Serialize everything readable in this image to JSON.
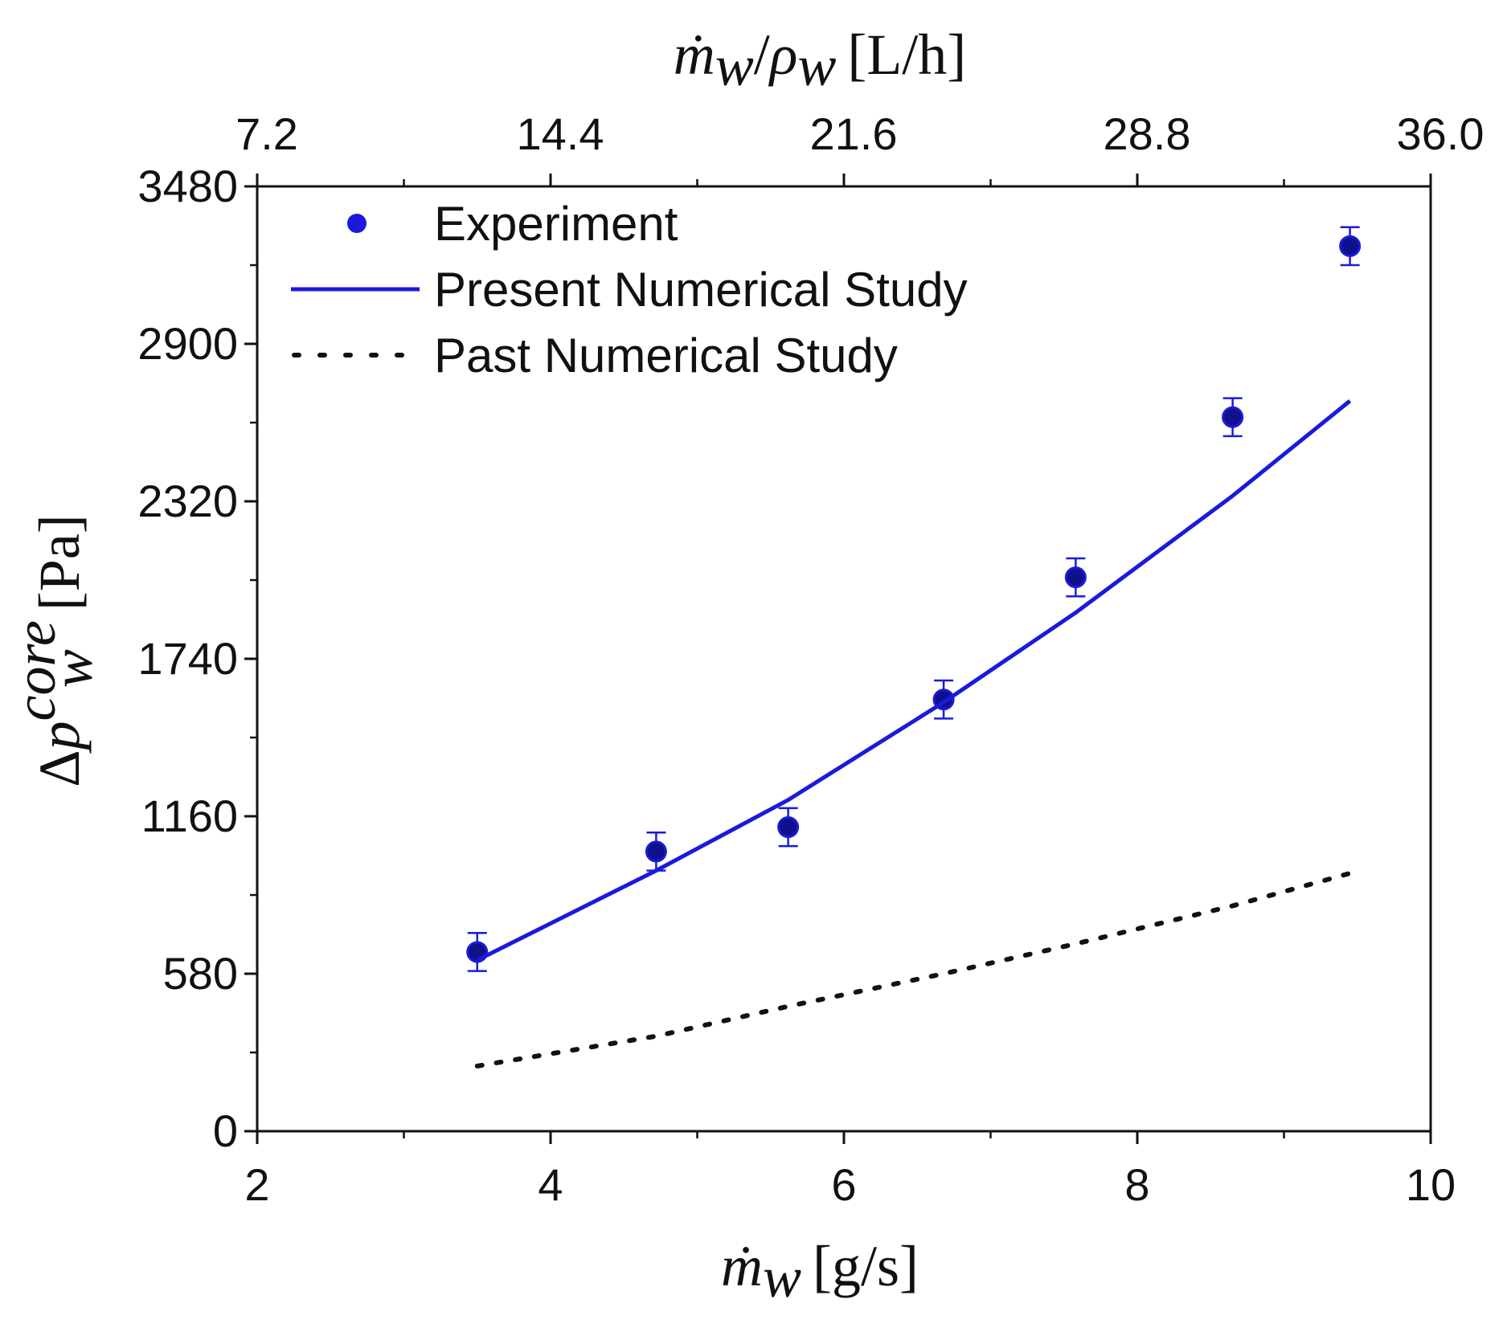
{
  "chart_data": {
    "type": "scatter",
    "x_axis": {
      "label_symbol": "ṁ",
      "label_subscript": "w",
      "label_unit": "[g/s]",
      "range": [
        2,
        10
      ],
      "major_ticks": [
        2,
        4,
        6,
        8,
        10
      ],
      "tick_labels": [
        "2",
        "4",
        "6",
        "8",
        "10"
      ],
      "minor_ticks": [
        3,
        5,
        7,
        9
      ]
    },
    "x_top_axis": {
      "label_symbol": "ṁ",
      "label_subscript": "w",
      "label_divider": "/",
      "label_rho": "ρ",
      "label_rho_subscript": "w",
      "label_unit": "[L/h]",
      "tick_labels": [
        "7.2",
        "14.4",
        "21.6",
        "28.8",
        "36.0"
      ],
      "tick_positions_bottom_units": [
        2,
        4,
        6,
        8,
        10
      ]
    },
    "y_axis": {
      "label_delta": "Δ",
      "label_symbol": "p",
      "label_subscript": "w",
      "label_superscript": "core",
      "label_unit": "[Pa]",
      "range": [
        0,
        3480
      ],
      "major_ticks": [
        0,
        580,
        1160,
        1740,
        2320,
        2900,
        3480
      ],
      "tick_labels": [
        "0",
        "580",
        "1160",
        "1740",
        "2320",
        "2900",
        "3480"
      ],
      "minor_ticks": [
        290,
        870,
        1450,
        2030,
        2610,
        3190
      ]
    },
    "series": [
      {
        "name": "Experiment",
        "kind": "scatter",
        "color": "#1a1adc",
        "x": [
          3.5,
          4.72,
          5.62,
          6.68,
          7.58,
          8.65,
          9.45
        ],
        "y": [
          660,
          1030,
          1120,
          1590,
          2040,
          2630,
          3260
        ],
        "error": [
          70,
          70,
          70,
          70,
          70,
          70,
          70
        ]
      },
      {
        "name": "Present Numerical Study",
        "kind": "line",
        "color": "#1a1adc",
        "x": [
          3.5,
          4.72,
          5.62,
          6.68,
          7.58,
          8.65,
          9.45
        ],
        "y": [
          630,
          960,
          1220,
          1580,
          1910,
          2340,
          2690
        ]
      },
      {
        "name": "Past Numerical Study",
        "kind": "dotted-line",
        "color": "#111111",
        "x": [
          3.5,
          4.72,
          5.62,
          6.68,
          7.58,
          8.65,
          9.45
        ],
        "y": [
          240,
          350,
          460,
          580,
          690,
          830,
          950
        ]
      }
    ],
    "legend": {
      "placement": "top-left"
    }
  }
}
